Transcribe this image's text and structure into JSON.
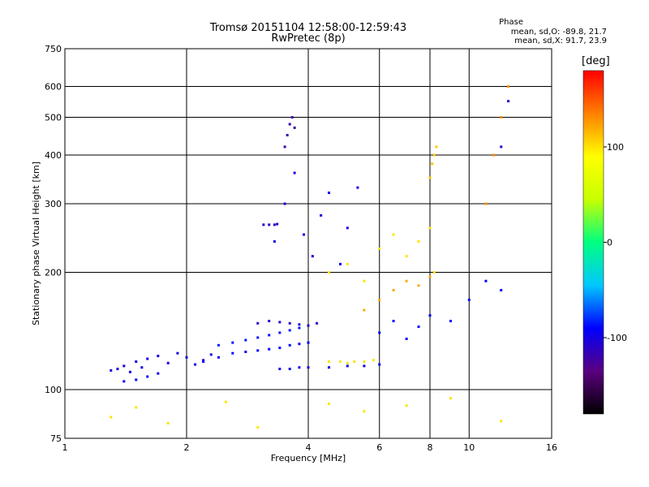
{
  "header": {
    "title_line1": "Tromsø 20151104 12:58:00-12:59:43",
    "title_line2": "RwPretec (8p)"
  },
  "phase_box": {
    "heading": "Phase",
    "line_o": "mean, sd,O: -89.8, 21.7",
    "line_x": "mean, sd,X:  91.7, 23.9"
  },
  "colorbar": {
    "unit": "[deg]",
    "ticks": [
      {
        "label": "100",
        "value": 100
      },
      {
        "label": "0",
        "value": 0
      },
      {
        "label": "-100",
        "value": -100
      }
    ],
    "range": [
      -180,
      180
    ],
    "colormap": [
      "#000000",
      "#5a0080",
      "#0000ff",
      "#00c8ff",
      "#00ff80",
      "#c8ff00",
      "#ffff00",
      "#ff8000",
      "#ff0000"
    ]
  },
  "chart_data": {
    "type": "scatter",
    "title": "Tromsø 20151104 12:58:00-12:59:43",
    "subtitle": "RwPretec (8p)",
    "xlabel": "Frequency [MHz]",
    "ylabel": "Stationary phase Virtual Height [km]",
    "xscale": "log",
    "yscale": "log",
    "xlim": [
      1,
      16
    ],
    "ylim": [
      75,
      750
    ],
    "x_ticks": [
      1,
      2,
      4,
      6,
      8,
      10,
      16
    ],
    "y_ticks": [
      75,
      100,
      200,
      300,
      400,
      500,
      600,
      750
    ],
    "grid": true,
    "color_by": "phase (deg)",
    "series": [
      {
        "x": [
          1.3,
          1.35,
          1.4,
          1.45,
          1.5,
          1.55,
          1.6,
          1.7,
          1.8,
          1.9,
          2.0,
          2.1,
          2.2,
          2.3
        ],
        "y": [
          112,
          113,
          115,
          111,
          118,
          114,
          120,
          122,
          117,
          124,
          121,
          116,
          119,
          123
        ],
        "phase": -100
      },
      {
        "x": [
          1.4,
          1.5,
          1.6,
          1.7
        ],
        "y": [
          105,
          106,
          108,
          110
        ],
        "phase": -95
      },
      {
        "x": [
          2.2,
          2.4,
          2.6,
          2.8,
          3.0,
          3.2,
          3.4,
          3.6,
          3.8,
          4.0
        ],
        "y": [
          118,
          121,
          124,
          125,
          126,
          127,
          128,
          130,
          131,
          132
        ],
        "phase": -90
      },
      {
        "x": [
          2.4,
          2.6,
          2.8,
          3.0,
          3.2,
          3.4,
          3.6,
          3.8
        ],
        "y": [
          130,
          132,
          134,
          136,
          138,
          140,
          142,
          144
        ],
        "phase": -85
      },
      {
        "x": [
          3.0,
          3.2,
          3.4,
          3.6,
          3.8,
          4.0,
          4.2
        ],
        "y": [
          148,
          150,
          149,
          148,
          147,
          146,
          148
        ],
        "phase": -110
      },
      {
        "x": [
          3.4,
          3.6,
          3.8,
          4.0,
          4.5,
          5.0,
          5.5,
          6.0
        ],
        "y": [
          113,
          113,
          114,
          114,
          114,
          115,
          115,
          116
        ],
        "phase": -100
      },
      {
        "x": [
          4.5,
          4.8,
          5.0,
          5.2,
          5.5,
          5.8
        ],
        "y": [
          118,
          118,
          117,
          118,
          118,
          119
        ],
        "phase": 100
      },
      {
        "x": [
          3.1,
          3.2,
          3.3,
          3.35
        ],
        "y": [
          265,
          265,
          265,
          266
        ],
        "phase": -110
      },
      {
        "x": [
          3.5,
          3.55,
          3.6,
          3.65,
          3.7
        ],
        "y": [
          420,
          450,
          480,
          500,
          470
        ],
        "phase": -120
      },
      {
        "x": [
          3.3,
          3.5,
          3.7,
          3.9,
          4.1,
          4.3,
          4.5,
          4.8,
          5.0,
          5.3
        ],
        "y": [
          240,
          300,
          360,
          250,
          220,
          280,
          320,
          210,
          260,
          330
        ],
        "phase": -100
      },
      {
        "x": [
          4.5,
          5.0,
          5.5,
          6.0,
          6.5,
          7.0,
          7.5,
          8.0,
          8.2
        ],
        "y": [
          200,
          210,
          190,
          230,
          250,
          220,
          240,
          260,
          200
        ],
        "phase": 100
      },
      {
        "x": [
          5.5,
          6.0,
          6.5,
          7.0,
          7.5,
          8.0
        ],
        "y": [
          160,
          170,
          180,
          190,
          185,
          195
        ],
        "phase": 120
      },
      {
        "x": [
          6.0,
          6.5,
          7.0,
          7.5,
          8.0
        ],
        "y": [
          140,
          150,
          135,
          145,
          155
        ],
        "phase": -90
      },
      {
        "x": [
          8.0,
          8.1,
          8.2,
          8.3
        ],
        "y": [
          350,
          380,
          400,
          420
        ],
        "phase": 110
      },
      {
        "x": [
          9.0,
          10.0,
          11.0,
          12.0
        ],
        "y": [
          150,
          170,
          190,
          180
        ],
        "phase": -90
      },
      {
        "x": [
          11.0,
          11.5,
          12.0,
          12.5
        ],
        "y": [
          300,
          400,
          500,
          600
        ],
        "phase": 130
      },
      {
        "x": [
          12.0,
          12.5
        ],
        "y": [
          420,
          550
        ],
        "phase": -110
      },
      {
        "x": [
          1.3,
          1.5,
          1.8,
          2.5,
          3.0,
          4.5,
          5.5,
          7.0,
          9.0,
          12.0
        ],
        "y": [
          85,
          90,
          82,
          93,
          80,
          92,
          88,
          91,
          95,
          83
        ],
        "phase": 100
      }
    ]
  }
}
